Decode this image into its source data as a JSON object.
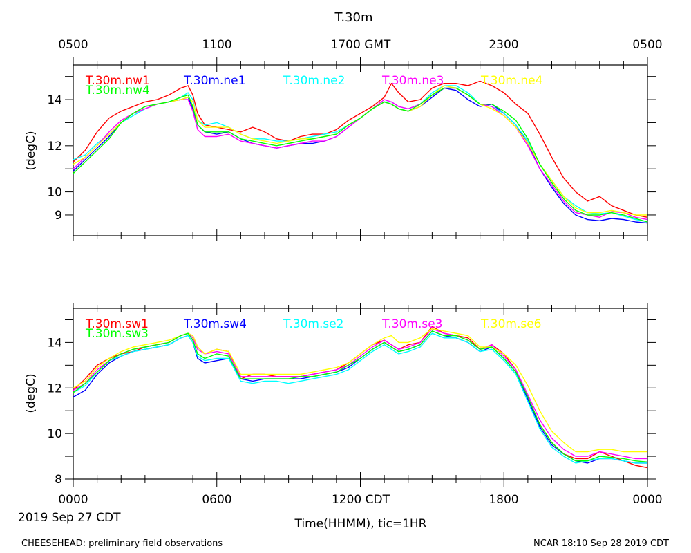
{
  "page": {
    "title": "T.30m",
    "gmt_ticks": [
      "0500",
      "1100",
      "1700 GMT",
      "2300",
      "0500"
    ],
    "cdt_ticks": [
      "0000",
      "0600",
      "1200 CDT",
      "1800",
      "0000"
    ],
    "date_label": "2019 Sep 27 CDT",
    "xlabel": "Time(HHMM), tic=1HR",
    "footer_left": "CHEESEHEAD: preliminary field observations",
    "footer_right": "NCAR 18:10 Sep 28 2019 CDT"
  },
  "chart_data": [
    {
      "type": "line",
      "title": "T.30m",
      "ylabel": "(degC)",
      "ylim": [
        8.1,
        15.5
      ],
      "yticks": [
        "9",
        "10",
        "12",
        "14"
      ],
      "x_hours": [
        0,
        0.5,
        1,
        1.5,
        2,
        2.5,
        3,
        3.5,
        4,
        4.5,
        4.8,
        5,
        5.2,
        5.5,
        6,
        6.5,
        7,
        7.5,
        8,
        8.5,
        9,
        9.5,
        10,
        10.5,
        11,
        11.5,
        12,
        12.5,
        13,
        13.3,
        13.6,
        14,
        14.5,
        15,
        15.5,
        16,
        16.5,
        17,
        17.5,
        18,
        18.5,
        19,
        19.5,
        20,
        20.5,
        21,
        21.5,
        22,
        22.5,
        23,
        23.5,
        24
      ],
      "series": [
        {
          "name": "T.30m.nw1",
          "color": "#ff0000",
          "values": [
            11.3,
            11.8,
            12.6,
            13.2,
            13.5,
            13.7,
            13.9,
            14.0,
            14.2,
            14.5,
            14.6,
            14.2,
            13.4,
            12.9,
            12.8,
            12.7,
            12.6,
            12.8,
            12.6,
            12.3,
            12.2,
            12.4,
            12.5,
            12.5,
            12.7,
            13.1,
            13.4,
            13.7,
            14.1,
            14.7,
            14.3,
            13.9,
            14.0,
            14.5,
            14.7,
            14.7,
            14.6,
            14.8,
            14.6,
            14.3,
            13.8,
            13.4,
            12.5,
            11.5,
            10.6,
            10.0,
            9.6,
            9.8,
            9.4,
            9.2,
            9.0,
            8.9
          ]
        },
        {
          "name": "T.30m.ne1",
          "color": "#0000ff",
          "values": [
            10.9,
            11.4,
            11.9,
            12.4,
            13.0,
            13.4,
            13.7,
            13.8,
            13.9,
            14.0,
            14.1,
            13.6,
            12.9,
            12.6,
            12.5,
            12.6,
            12.3,
            12.1,
            12.0,
            11.9,
            12.0,
            12.1,
            12.1,
            12.2,
            12.4,
            12.8,
            13.2,
            13.6,
            13.9,
            13.8,
            13.6,
            13.5,
            13.7,
            14.1,
            14.5,
            14.4,
            14.0,
            13.7,
            13.8,
            13.4,
            12.9,
            12.1,
            11.0,
            10.2,
            9.5,
            9.0,
            8.8,
            8.75,
            8.85,
            8.8,
            8.7,
            8.65
          ]
        },
        {
          "name": "T.30m.ne2",
          "color": "#00ffff",
          "values": [
            11.4,
            11.6,
            12.1,
            12.5,
            13.0,
            13.3,
            13.6,
            13.8,
            13.9,
            14.1,
            14.3,
            14.0,
            13.1,
            12.9,
            13.0,
            12.8,
            12.5,
            12.3,
            12.3,
            12.2,
            12.2,
            12.3,
            12.4,
            12.5,
            12.6,
            12.9,
            13.2,
            13.6,
            13.9,
            13.9,
            13.7,
            13.6,
            13.8,
            14.3,
            14.6,
            14.6,
            14.3,
            13.8,
            13.7,
            13.4,
            12.9,
            12.2,
            11.2,
            10.5,
            9.8,
            9.4,
            9.1,
            9.05,
            9.1,
            8.95,
            8.8,
            8.7
          ]
        },
        {
          "name": "T.30m.ne3",
          "color": "#ff00ff",
          "values": [
            11.0,
            11.5,
            12.0,
            12.6,
            13.1,
            13.4,
            13.6,
            13.8,
            13.9,
            14.0,
            14.0,
            13.5,
            12.7,
            12.4,
            12.4,
            12.5,
            12.2,
            12.1,
            12.0,
            11.9,
            12.0,
            12.1,
            12.2,
            12.2,
            12.4,
            12.8,
            13.2,
            13.6,
            14.0,
            13.9,
            13.7,
            13.6,
            13.8,
            14.2,
            14.5,
            14.5,
            14.2,
            13.8,
            13.7,
            13.3,
            12.8,
            12.0,
            11.0,
            10.3,
            9.6,
            9.1,
            9.0,
            8.9,
            9.15,
            9.1,
            8.9,
            8.8
          ]
        },
        {
          "name": "T.30m.ne4",
          "color": "#ffff00",
          "values": [
            11.2,
            11.5,
            12.0,
            12.5,
            13.0,
            13.4,
            13.7,
            13.8,
            13.9,
            14.0,
            14.1,
            13.9,
            13.1,
            12.8,
            12.8,
            12.8,
            12.5,
            12.3,
            12.2,
            12.1,
            12.2,
            12.3,
            12.3,
            12.4,
            12.5,
            12.9,
            13.2,
            13.6,
            13.9,
            13.8,
            13.6,
            13.5,
            13.7,
            14.2,
            14.6,
            14.5,
            14.2,
            13.8,
            13.6,
            13.3,
            12.8,
            12.1,
            11.2,
            10.5,
            9.8,
            9.3,
            9.1,
            9.1,
            9.2,
            9.1,
            9.0,
            9.0
          ]
        },
        {
          "name": "T.30m.nw4",
          "color": "#00ff00",
          "values": [
            10.8,
            11.3,
            11.8,
            12.3,
            13.0,
            13.4,
            13.7,
            13.8,
            13.9,
            14.1,
            14.2,
            13.7,
            12.9,
            12.6,
            12.6,
            12.6,
            12.3,
            12.2,
            12.1,
            12.0,
            12.1,
            12.2,
            12.3,
            12.4,
            12.5,
            12.9,
            13.2,
            13.6,
            13.9,
            13.8,
            13.6,
            13.5,
            13.8,
            14.2,
            14.5,
            14.5,
            14.2,
            13.8,
            13.8,
            13.5,
            13.1,
            12.3,
            11.2,
            10.4,
            9.7,
            9.2,
            9.0,
            9.0,
            9.1,
            9.0,
            8.85,
            8.7
          ]
        }
      ]
    },
    {
      "type": "line",
      "title": "",
      "ylabel": "(degC)",
      "ylim": [
        8.0,
        15.5
      ],
      "yticks": [
        "8",
        "10",
        "12",
        "14"
      ],
      "x_hours": [
        0,
        0.5,
        1,
        1.5,
        2,
        2.5,
        3,
        3.5,
        4,
        4.5,
        4.8,
        5,
        5.2,
        5.5,
        6,
        6.5,
        7,
        7.5,
        8,
        8.5,
        9,
        9.5,
        10,
        10.5,
        11,
        11.5,
        12,
        12.5,
        13,
        13.3,
        13.6,
        14,
        14.5,
        15,
        15.5,
        16,
        16.5,
        17,
        17.5,
        18,
        18.5,
        19,
        19.5,
        20,
        20.5,
        21,
        21.5,
        22,
        22.5,
        23,
        23.5,
        24
      ],
      "series": [
        {
          "name": "T.30m.sw1",
          "color": "#ff0000",
          "values": [
            11.9,
            12.4,
            13.0,
            13.3,
            13.5,
            13.6,
            13.8,
            13.9,
            14.0,
            14.3,
            14.4,
            14.3,
            13.8,
            13.5,
            13.7,
            13.6,
            12.4,
            12.6,
            12.6,
            12.5,
            12.5,
            12.5,
            12.6,
            12.7,
            12.8,
            13.1,
            13.5,
            13.9,
            14.1,
            13.9,
            13.7,
            13.9,
            14.0,
            14.7,
            14.4,
            14.3,
            14.2,
            13.7,
            13.9,
            13.5,
            12.8,
            11.6,
            10.4,
            9.6,
            9.1,
            8.9,
            8.9,
            9.2,
            9.0,
            8.8,
            8.6,
            8.5
          ]
        },
        {
          "name": "T.30m.sw4",
          "color": "#0000ff",
          "values": [
            11.6,
            11.9,
            12.6,
            13.1,
            13.4,
            13.6,
            13.7,
            13.8,
            13.9,
            14.2,
            14.3,
            14.0,
            13.3,
            13.1,
            13.2,
            13.3,
            12.4,
            12.3,
            12.4,
            12.4,
            12.4,
            12.4,
            12.5,
            12.6,
            12.7,
            12.9,
            13.3,
            13.7,
            14.0,
            13.8,
            13.6,
            13.7,
            13.9,
            14.5,
            14.3,
            14.2,
            14.0,
            13.6,
            13.8,
            13.3,
            12.7,
            11.5,
            10.3,
            9.5,
            9.1,
            8.8,
            8.7,
            8.9,
            8.9,
            8.8,
            8.7,
            8.7
          ]
        },
        {
          "name": "T.30m.se2",
          "color": "#00ffff",
          "values": [
            11.8,
            12.1,
            12.7,
            13.2,
            13.4,
            13.6,
            13.7,
            13.8,
            13.9,
            14.2,
            14.3,
            14.0,
            13.4,
            13.2,
            13.3,
            13.3,
            12.3,
            12.2,
            12.3,
            12.3,
            12.2,
            12.3,
            12.4,
            12.5,
            12.6,
            12.8,
            13.2,
            13.6,
            13.9,
            13.7,
            13.5,
            13.6,
            13.8,
            14.4,
            14.2,
            14.2,
            14.0,
            13.6,
            13.7,
            13.2,
            12.6,
            11.4,
            10.2,
            9.4,
            9.0,
            8.7,
            8.8,
            8.9,
            8.9,
            8.8,
            8.7,
            8.7
          ]
        },
        {
          "name": "T.30m.se3",
          "color": "#ff00ff",
          "values": [
            11.9,
            12.2,
            12.8,
            13.2,
            13.5,
            13.7,
            13.8,
            13.9,
            14.0,
            14.3,
            14.4,
            14.2,
            13.7,
            13.5,
            13.6,
            13.5,
            12.5,
            12.5,
            12.5,
            12.5,
            12.5,
            12.5,
            12.6,
            12.7,
            12.8,
            13.0,
            13.4,
            13.8,
            14.1,
            13.9,
            13.7,
            13.8,
            14.0,
            14.6,
            14.4,
            14.3,
            14.1,
            13.7,
            13.9,
            13.4,
            12.8,
            11.7,
            10.6,
            9.8,
            9.3,
            9.0,
            9.0,
            9.2,
            9.1,
            9.0,
            8.9,
            8.9
          ]
        },
        {
          "name": "T.30m.se6",
          "color": "#ffff00",
          "values": [
            12.0,
            12.3,
            12.9,
            13.3,
            13.6,
            13.8,
            13.9,
            14.0,
            14.1,
            14.3,
            14.4,
            14.3,
            13.8,
            13.5,
            13.7,
            13.6,
            12.6,
            12.6,
            12.6,
            12.6,
            12.6,
            12.6,
            12.7,
            12.8,
            12.9,
            13.1,
            13.5,
            13.9,
            14.2,
            14.3,
            14.0,
            14.0,
            14.2,
            14.6,
            14.5,
            14.4,
            14.3,
            13.8,
            13.8,
            13.5,
            13.0,
            12.1,
            11.0,
            10.1,
            9.6,
            9.2,
            9.2,
            9.3,
            9.3,
            9.2,
            9.2,
            9.2
          ]
        },
        {
          "name": "T.30m.sw3",
          "color": "#00ff00",
          "values": [
            11.8,
            12.2,
            12.7,
            13.2,
            13.5,
            13.7,
            13.8,
            13.9,
            14.0,
            14.3,
            14.4,
            14.1,
            13.5,
            13.3,
            13.5,
            13.4,
            12.4,
            12.4,
            12.4,
            12.4,
            12.4,
            12.5,
            12.5,
            12.6,
            12.7,
            13.0,
            13.3,
            13.7,
            14.0,
            13.8,
            13.6,
            13.7,
            13.9,
            14.5,
            14.3,
            14.3,
            14.1,
            13.7,
            13.8,
            13.3,
            12.7,
            11.6,
            10.4,
            9.6,
            9.1,
            8.8,
            8.8,
            9.0,
            8.95,
            8.9,
            8.8,
            8.75
          ]
        }
      ]
    }
  ]
}
